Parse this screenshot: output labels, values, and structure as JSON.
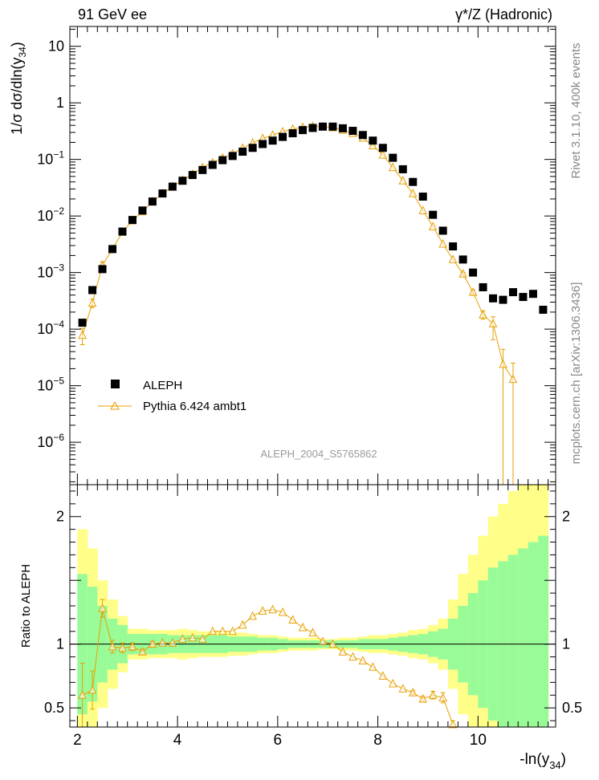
{
  "header": {
    "left": "91 GeV ee",
    "right": "γ*/Z (Hadronic)"
  },
  "side_labels": {
    "top": "Rivet 3.1.10,  400k events",
    "bottom": "mcplots.cern.ch [arXiv:1306.3436]"
  },
  "colors": {
    "mc": "#e8a000",
    "band_inner": "#98fb98",
    "band_outer": "#fffe88",
    "data": "#000000"
  },
  "chart_data": [
    {
      "type": "scatter",
      "name": "main-panel",
      "analysis_label": "ALEPH_2004_S5765862",
      "ylabel": "1/σ  dσ/dln(y34)",
      "ylabel_main": "1/σ  dσ/dln(y",
      "ylabel_sub": "34",
      "ylabel_end": ")",
      "yscale": "log",
      "xlim": [
        1.85,
        11.55
      ],
      "ylim_log10": [
        -6.75,
        1.35
      ],
      "yticks": [
        "10",
        "1",
        "10^-1",
        "10^-2",
        "10^-3",
        "10^-4",
        "10^-5",
        "10^-6"
      ],
      "ytick_labels": [
        {
          "base": "10",
          "exp": ""
        },
        {
          "base": "1",
          "exp": ""
        },
        {
          "base": "10",
          "exp": "−1"
        },
        {
          "base": "10",
          "exp": "−2"
        },
        {
          "base": "10",
          "exp": "−3"
        },
        {
          "base": "10",
          "exp": "−4"
        },
        {
          "base": "10",
          "exp": "−5"
        },
        {
          "base": "10",
          "exp": "−6"
        }
      ],
      "legend": {
        "position": "lower-left",
        "entries": [
          {
            "label": "ALEPH",
            "marker": "square"
          },
          {
            "label": "Pythia 6.424 ambt1",
            "marker": "triangle"
          }
        ]
      },
      "series": [
        {
          "name": "ALEPH",
          "x": [
            2.1,
            2.3,
            2.5,
            2.7,
            2.9,
            3.1,
            3.3,
            3.5,
            3.7,
            3.9,
            4.1,
            4.3,
            4.5,
            4.7,
            4.9,
            5.1,
            5.3,
            5.5,
            5.7,
            5.9,
            6.1,
            6.3,
            6.5,
            6.7,
            6.9,
            7.1,
            7.3,
            7.5,
            7.7,
            7.9,
            8.1,
            8.3,
            8.5,
            8.7,
            8.9,
            9.1,
            9.3,
            9.5,
            9.7,
            9.9,
            10.1,
            10.3,
            10.5,
            10.7,
            10.9,
            11.1,
            11.3
          ],
          "values": [
            0.00013,
            0.00049,
            0.00115,
            0.0026,
            0.0053,
            0.0085,
            0.0125,
            0.018,
            0.025,
            0.033,
            0.042,
            0.053,
            0.065,
            0.08,
            0.097,
            0.115,
            0.137,
            0.16,
            0.187,
            0.215,
            0.25,
            0.29,
            0.33,
            0.36,
            0.38,
            0.38,
            0.355,
            0.32,
            0.27,
            0.215,
            0.16,
            0.107,
            0.067,
            0.04,
            0.022,
            0.0105,
            0.0055,
            0.0029,
            0.0017,
            0.001,
            0.00055,
            0.00035,
            0.00033,
            0.00045,
            0.00037,
            0.00042,
            0.00022
          ]
        },
        {
          "name": "Pythia 6.424 ambt1",
          "x": [
            2.1,
            2.3,
            2.5,
            2.7,
            2.9,
            3.1,
            3.3,
            3.5,
            3.7,
            3.9,
            4.1,
            4.3,
            4.5,
            4.7,
            4.9,
            5.1,
            5.3,
            5.5,
            5.7,
            5.9,
            6.1,
            6.3,
            6.5,
            6.7,
            6.9,
            7.1,
            7.3,
            7.5,
            7.7,
            7.9,
            8.1,
            8.3,
            8.5,
            8.7,
            8.9,
            9.1,
            9.3,
            9.5,
            9.7,
            9.9,
            10.1,
            10.3,
            10.5,
            10.7
          ],
          "values": [
            7.8e-05,
            0.00029,
            0.00135,
            0.0026,
            0.0052,
            0.0083,
            0.012,
            0.018,
            0.025,
            0.033,
            0.043,
            0.055,
            0.072,
            0.088,
            0.106,
            0.126,
            0.158,
            0.195,
            0.235,
            0.27,
            0.31,
            0.345,
            0.37,
            0.385,
            0.38,
            0.365,
            0.33,
            0.29,
            0.24,
            0.175,
            0.12,
            0.072,
            0.042,
            0.025,
            0.0125,
            0.0065,
            0.0032,
            0.0017,
            0.00095,
            0.00045,
            0.00018,
            0.000125,
            2.4e-05,
            1.3e-05
          ],
          "err_low": [
            2.5e-05,
            5e-05,
            0.0002,
            0.0003,
            0.0005,
            0.0006,
            0.0008,
            0.001,
            0.001,
            0.001,
            0.001,
            0.001,
            0.001,
            0.001,
            0.001,
            0.001,
            0.001,
            0.001,
            0.001,
            0.001,
            0.001,
            0.001,
            0.001,
            0.001,
            0.001,
            0.001,
            0.001,
            0.001,
            0.001,
            0.001,
            0.001,
            0.001,
            0.001,
            0.0005,
            0.0003,
            0.0002,
            0.0001,
            8e-05,
            6e-05,
            4e-05,
            3e-05,
            6e-05,
            2.4e-05,
            1.3e-05
          ],
          "err_high": [
            2.5e-05,
            5e-05,
            0.0002,
            0.0003,
            0.0005,
            0.0006,
            0.0008,
            0.001,
            0.001,
            0.001,
            0.001,
            0.001,
            0.001,
            0.001,
            0.001,
            0.001,
            0.001,
            0.001,
            0.001,
            0.001,
            0.001,
            0.001,
            0.001,
            0.001,
            0.001,
            0.001,
            0.001,
            0.001,
            0.001,
            0.001,
            0.001,
            0.001,
            0.001,
            0.0005,
            0.0003,
            0.0002,
            0.0001,
            8e-05,
            6e-05,
            4e-05,
            3e-05,
            4e-05,
            2e-05,
            1.2e-05
          ]
        }
      ]
    },
    {
      "type": "scatter",
      "name": "ratio-panel",
      "ylabel": "Ratio to ALEPH",
      "xlabel": "-ln(y34)",
      "xlabel_main": "-ln(y",
      "xlabel_sub": "34",
      "xlabel_end": ")",
      "xlim": [
        1.85,
        11.55
      ],
      "ylim": [
        0.35,
        2.25
      ],
      "xticks": [
        2,
        4,
        6,
        8,
        10
      ],
      "yticks": [
        0.5,
        1,
        1.5,
        2
      ],
      "ytick_labels": [
        "0.5",
        "1",
        "2"
      ],
      "reference_line": 1,
      "bin_edges": [
        2.0,
        2.2,
        2.4,
        2.6,
        2.8,
        3.0,
        3.2,
        3.4,
        3.6,
        3.8,
        4.0,
        4.2,
        4.4,
        4.6,
        4.8,
        5.0,
        5.2,
        5.4,
        5.6,
        5.8,
        6.0,
        6.2,
        6.4,
        6.6,
        6.8,
        7.0,
        7.2,
        7.4,
        7.6,
        7.8,
        8.0,
        8.2,
        8.4,
        8.6,
        8.8,
        9.0,
        9.2,
        9.4,
        9.6,
        9.8,
        10.0,
        10.2,
        10.4,
        10.6,
        10.8,
        11.0,
        11.2,
        11.4
      ],
      "band_inner_halfwidth": [
        0.55,
        0.45,
        0.3,
        0.2,
        0.15,
        0.08,
        0.08,
        0.08,
        0.08,
        0.07,
        0.07,
        0.07,
        0.07,
        0.07,
        0.07,
        0.06,
        0.06,
        0.06,
        0.05,
        0.05,
        0.04,
        0.03,
        0.03,
        0.03,
        0.03,
        0.03,
        0.03,
        0.03,
        0.04,
        0.04,
        0.04,
        0.05,
        0.06,
        0.07,
        0.08,
        0.1,
        0.12,
        0.2,
        0.3,
        0.4,
        0.5,
        0.6,
        0.65,
        0.7,
        0.75,
        0.8,
        0.85
      ],
      "band_outer_halfwidth": [
        0.9,
        0.75,
        0.5,
        0.35,
        0.22,
        0.12,
        0.12,
        0.11,
        0.11,
        0.11,
        0.12,
        0.11,
        0.1,
        0.1,
        0.1,
        0.09,
        0.09,
        0.08,
        0.07,
        0.07,
        0.06,
        0.05,
        0.05,
        0.05,
        0.04,
        0.04,
        0.05,
        0.05,
        0.06,
        0.07,
        0.07,
        0.08,
        0.09,
        0.11,
        0.12,
        0.15,
        0.2,
        0.35,
        0.55,
        0.7,
        0.85,
        1.0,
        1.1,
        1.2,
        1.25,
        1.3,
        1.35
      ],
      "series": [
        {
          "name": "Pythia 6.424 ambt1 / ALEPH",
          "x": [
            2.1,
            2.3,
            2.5,
            2.7,
            2.9,
            3.1,
            3.3,
            3.5,
            3.7,
            3.9,
            4.1,
            4.3,
            4.5,
            4.7,
            4.9,
            5.1,
            5.3,
            5.5,
            5.7,
            5.9,
            6.1,
            6.3,
            6.5,
            6.7,
            6.9,
            7.1,
            7.3,
            7.5,
            7.7,
            7.9,
            8.1,
            8.3,
            8.5,
            8.7,
            8.9,
            9.1,
            9.3,
            9.5
          ],
          "values": [
            0.6,
            0.64,
            1.28,
            0.98,
            0.97,
            0.98,
            0.94,
            1.0,
            1.01,
            1.01,
            1.04,
            1.05,
            1.04,
            1.1,
            1.1,
            1.1,
            1.15,
            1.22,
            1.26,
            1.27,
            1.25,
            1.19,
            1.13,
            1.09,
            1.02,
            1.0,
            0.94,
            0.9,
            0.87,
            0.82,
            0.75,
            0.69,
            0.65,
            0.62,
            0.57,
            0.6,
            0.58,
            0.37
          ],
          "err": [
            0.25,
            0.15,
            0.07,
            0.05,
            0.04,
            0.03,
            0.02,
            0.02,
            0.01,
            0.01,
            0.01,
            0.01,
            0.01,
            0.01,
            0.01,
            0.01,
            0.01,
            0.01,
            0.01,
            0.01,
            0.01,
            0.01,
            0.01,
            0.01,
            0.01,
            0.01,
            0.01,
            0.01,
            0.01,
            0.01,
            0.01,
            0.01,
            0.01,
            0.015,
            0.02,
            0.03,
            0.04,
            0.03
          ]
        }
      ]
    }
  ]
}
